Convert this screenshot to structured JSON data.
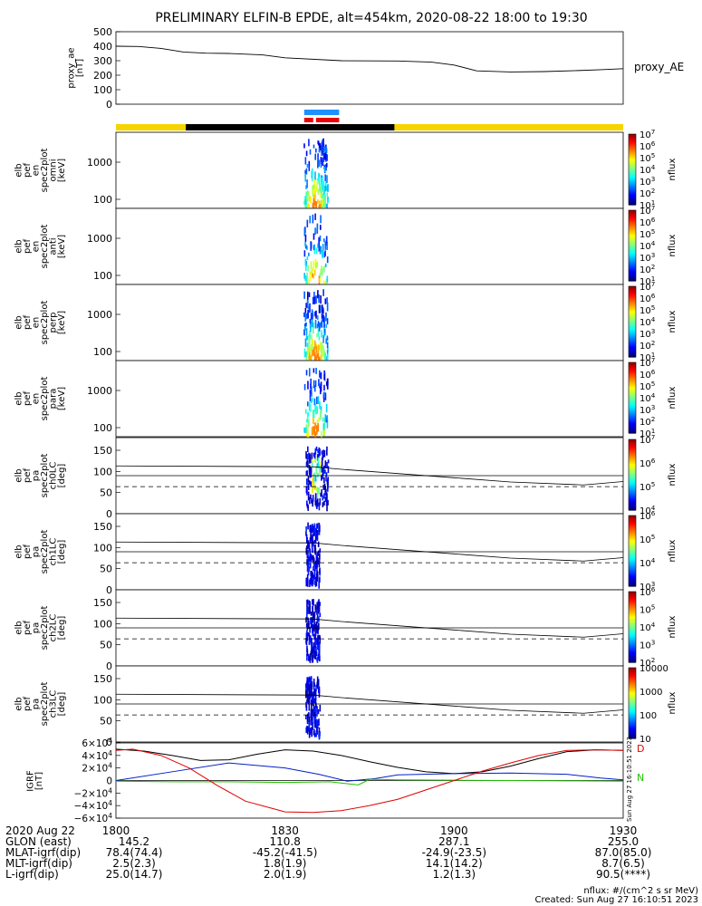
{
  "title": "PRELIMINARY ELFIN-B EPDE, alt=454km, 2020-08-22 18:00 to 19:30",
  "chart_data": [
    {
      "type": "line",
      "ylabel": "proxy_ae\n[nT]",
      "legend": "proxy_AE",
      "yticks": [
        "500",
        "400",
        "300",
        "200",
        "100",
        "0"
      ],
      "ylim": [
        0,
        500
      ],
      "xlim_min": [
        0,
        90
      ],
      "x": [
        0,
        4,
        8,
        12,
        16,
        20,
        26,
        30,
        40,
        50,
        56,
        60,
        64,
        70,
        76,
        82,
        86,
        90
      ],
      "values": [
        400,
        398,
        385,
        360,
        352,
        350,
        340,
        320,
        300,
        298,
        290,
        270,
        230,
        222,
        225,
        232,
        238,
        245
      ]
    },
    {
      "type": "heatmap",
      "channel": "omni",
      "ylabel": [
        "elb",
        "pef",
        "en",
        "spec2plot",
        "omni",
        "[keV]"
      ],
      "yticks": [
        "1000",
        "100"
      ],
      "colorbar_ticks": [
        "10^7",
        "10^6",
        "10^5",
        "10^4",
        "10^3",
        "10^2",
        "10^1"
      ],
      "colorbar_label": "nflux"
    },
    {
      "type": "heatmap",
      "channel": "anti",
      "ylabel": [
        "elb",
        "pef",
        "en",
        "spec2plot",
        "anti",
        "[keV]"
      ],
      "yticks": [
        "1000",
        "100"
      ],
      "colorbar_ticks": [
        "10^7",
        "10^6",
        "10^5",
        "10^4",
        "10^3",
        "10^2",
        "10^1"
      ],
      "colorbar_label": "nflux"
    },
    {
      "type": "heatmap",
      "channel": "perp",
      "ylabel": [
        "elb",
        "pef",
        "en",
        "spec2plot",
        "perp",
        "[keV]"
      ],
      "yticks": [
        "1000",
        "100"
      ],
      "colorbar_ticks": [
        "10^7",
        "10^6",
        "10^5",
        "10^4",
        "10^3",
        "10^2",
        "10^1"
      ],
      "colorbar_label": "nflux"
    },
    {
      "type": "heatmap",
      "channel": "para",
      "ylabel": [
        "elb",
        "pef",
        "en",
        "spec2plot",
        "para",
        "[keV]"
      ],
      "yticks": [
        "1000",
        "100"
      ],
      "colorbar_ticks": [
        "10^7",
        "10^6",
        "10^5",
        "10^4",
        "10^3",
        "10^2",
        "10^1"
      ],
      "colorbar_label": "nflux"
    },
    {
      "type": "heatmap",
      "channel": "ch0LC",
      "ylabel": [
        "elb",
        "pef",
        "pa",
        "spec2plot",
        "ch0LC",
        "[deg]"
      ],
      "yticks": [
        "150",
        "100",
        "50",
        "0"
      ],
      "ylim": [
        0,
        180
      ],
      "colorbar_ticks": [
        "10^7",
        "10^6",
        "10^5",
        "10^4"
      ],
      "colorbar_label": "nflux"
    },
    {
      "type": "heatmap",
      "channel": "ch1LC",
      "ylabel": [
        "elb",
        "pef",
        "pa",
        "spec2plot",
        "ch1LC",
        "[deg]"
      ],
      "yticks": [
        "150",
        "100",
        "50",
        "0"
      ],
      "ylim": [
        0,
        180
      ],
      "colorbar_ticks": [
        "10^6",
        "10^5",
        "10^4",
        "10^3"
      ],
      "colorbar_label": "nflux"
    },
    {
      "type": "heatmap",
      "channel": "ch2LC",
      "ylabel": [
        "elb",
        "pef",
        "pa",
        "spec2plot",
        "ch2LC",
        "[deg]"
      ],
      "yticks": [
        "150",
        "100",
        "50",
        "0"
      ],
      "ylim": [
        0,
        180
      ],
      "colorbar_ticks": [
        "10^6",
        "10^5",
        "10^4",
        "10^3",
        "10^2"
      ],
      "colorbar_label": "nflux"
    },
    {
      "type": "heatmap",
      "channel": "ch3LC",
      "ylabel": [
        "elb",
        "pef",
        "pa",
        "spec2plot",
        "ch3LC",
        "[deg]"
      ],
      "yticks": [
        "150",
        "100",
        "50",
        "0"
      ],
      "ylim": [
        0,
        180
      ],
      "colorbar_ticks": [
        "10000",
        "1000",
        "100",
        "10"
      ],
      "colorbar_label": "nflux"
    },
    {
      "type": "line",
      "ylabel": "IGRF\n[nT]",
      "yticks": [
        "6×10^4",
        "4×10^4",
        "2×10^4",
        "0",
        "−2×10^4",
        "−4×10^4",
        "−6×10^4"
      ],
      "ylim": [
        -60000,
        60000
      ],
      "legend": [
        "D",
        "N"
      ],
      "series": [
        {
          "name": "black",
          "x": [
            0,
            5,
            10,
            15,
            20,
            25,
            30,
            35,
            40,
            45,
            50,
            55,
            60,
            65,
            70,
            75,
            80,
            85,
            90
          ],
          "values": [
            50000,
            47000,
            40000,
            32000,
            33000,
            42000,
            49000,
            47000,
            40000,
            30000,
            21000,
            14000,
            11000,
            14000,
            23000,
            35000,
            46000,
            49000,
            48000
          ]
        },
        {
          "name": "blue",
          "x": [
            0,
            10,
            20,
            30,
            36,
            41,
            46,
            50,
            60,
            70,
            80,
            86,
            90
          ],
          "values": [
            0,
            14000,
            28000,
            20000,
            10000,
            -1000,
            3000,
            9000,
            11000,
            12000,
            10000,
            4000,
            1000
          ]
        },
        {
          "name": "green",
          "x": [
            0,
            10,
            20,
            30,
            38,
            43,
            45,
            50,
            60,
            70,
            80,
            90
          ],
          "values": [
            -1000,
            -2000,
            -2000,
            -3000,
            -2000,
            -7000,
            2000,
            1000,
            500,
            0,
            -500,
            -1000
          ]
        },
        {
          "name": "red",
          "x": [
            0,
            3,
            8,
            13,
            18,
            23,
            30,
            35,
            40,
            45,
            50,
            55,
            60,
            65,
            70,
            75,
            80,
            85,
            90
          ],
          "values": [
            48000,
            50000,
            40000,
            20000,
            -8000,
            -33000,
            -50000,
            -51000,
            -48000,
            -40000,
            -30000,
            -15000,
            0,
            15000,
            28000,
            40000,
            48000,
            49000,
            48000
          ]
        }
      ]
    }
  ],
  "pa_reference_lines": {
    "solid_upper": [
      113,
      111,
      105,
      95,
      85,
      75,
      68,
      76
    ],
    "solid_lower": 90,
    "dashed": 64
  },
  "orbit_table": {
    "labels": [
      "2020 Aug 22",
      "GLON (east)",
      "MLAT-igrf(dip)",
      "MLT-igrf(dip)",
      "L-igrf(dip)"
    ],
    "columns": [
      {
        "time": "1800",
        "values": [
          "145.2",
          "78.4(74.4)",
          "2.5(2.3)",
          "25.0(14.7)"
        ]
      },
      {
        "time": "1830",
        "values": [
          "110.8",
          "-45.2(-41.5)",
          "1.8(1.9)",
          "2.0(1.9)"
        ]
      },
      {
        "time": "1900",
        "values": [
          "287.1",
          "-24.9(-23.5)",
          "14.1(14.2)",
          "1.2(1.3)"
        ]
      },
      {
        "time": "1930",
        "values": [
          "255.0",
          "87.0(85.0)",
          "8.7(6.5)",
          "90.5(****)"
        ]
      }
    ]
  },
  "footer": {
    "units": "nflux: #/(cm^2 s sr MeV)",
    "created": "Created: Sun Aug 27 16:10:51 2023"
  },
  "side_stamp": "Sun Aug 27 16:10:51 2023",
  "colors": {
    "yellow_bar": "#f5d400",
    "black_bar": "#000000",
    "blue_marker": "#1e90ff",
    "red_marker": "#e8000a",
    "igrf_black": "#000000",
    "igrf_blue": "#0020c8",
    "igrf_green": "#20c000",
    "igrf_red": "#e00000",
    "legend_D": "#e00000",
    "legend_N": "#20c000"
  }
}
